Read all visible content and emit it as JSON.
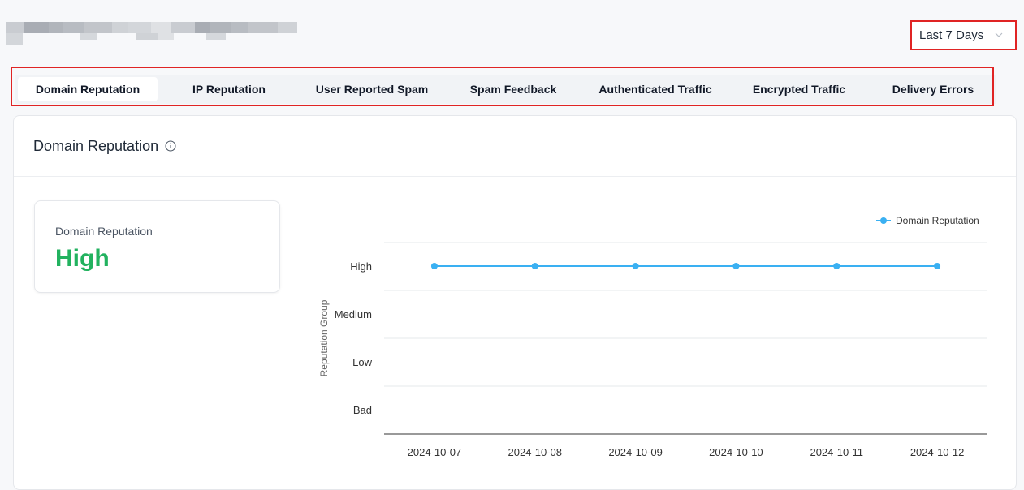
{
  "header": {
    "period_select": {
      "value": "Last 7 Days"
    }
  },
  "tabs": [
    {
      "label": "Domain Reputation",
      "active": true
    },
    {
      "label": "IP Reputation"
    },
    {
      "label": "User Reported Spam"
    },
    {
      "label": "Spam Feedback"
    },
    {
      "label": "Authenticated Traffic"
    },
    {
      "label": "Encrypted Traffic"
    },
    {
      "label": "Delivery Errors"
    }
  ],
  "card": {
    "title": "Domain Reputation",
    "stat": {
      "label": "Domain Reputation",
      "value": "High",
      "value_color": "#22b25f"
    }
  },
  "chart_data": {
    "type": "line",
    "ylabel": "Reputation Group",
    "y_categories": [
      "Bad",
      "Low",
      "Medium",
      "High"
    ],
    "x": [
      "2024-10-07",
      "2024-10-08",
      "2024-10-09",
      "2024-10-10",
      "2024-10-11",
      "2024-10-12"
    ],
    "series": [
      {
        "name": "Domain Reputation",
        "values": [
          "High",
          "High",
          "High",
          "High",
          "High",
          "High"
        ],
        "color": "#3ab0f2"
      }
    ],
    "legend": "top-right",
    "grid": true
  },
  "colors": {
    "highlight_border": "#e02424",
    "accent_green": "#22b25f",
    "series_blue": "#3ab0f2"
  },
  "icons": {
    "info": "info-circle-icon",
    "dropdown": "chevron-down-icon"
  }
}
